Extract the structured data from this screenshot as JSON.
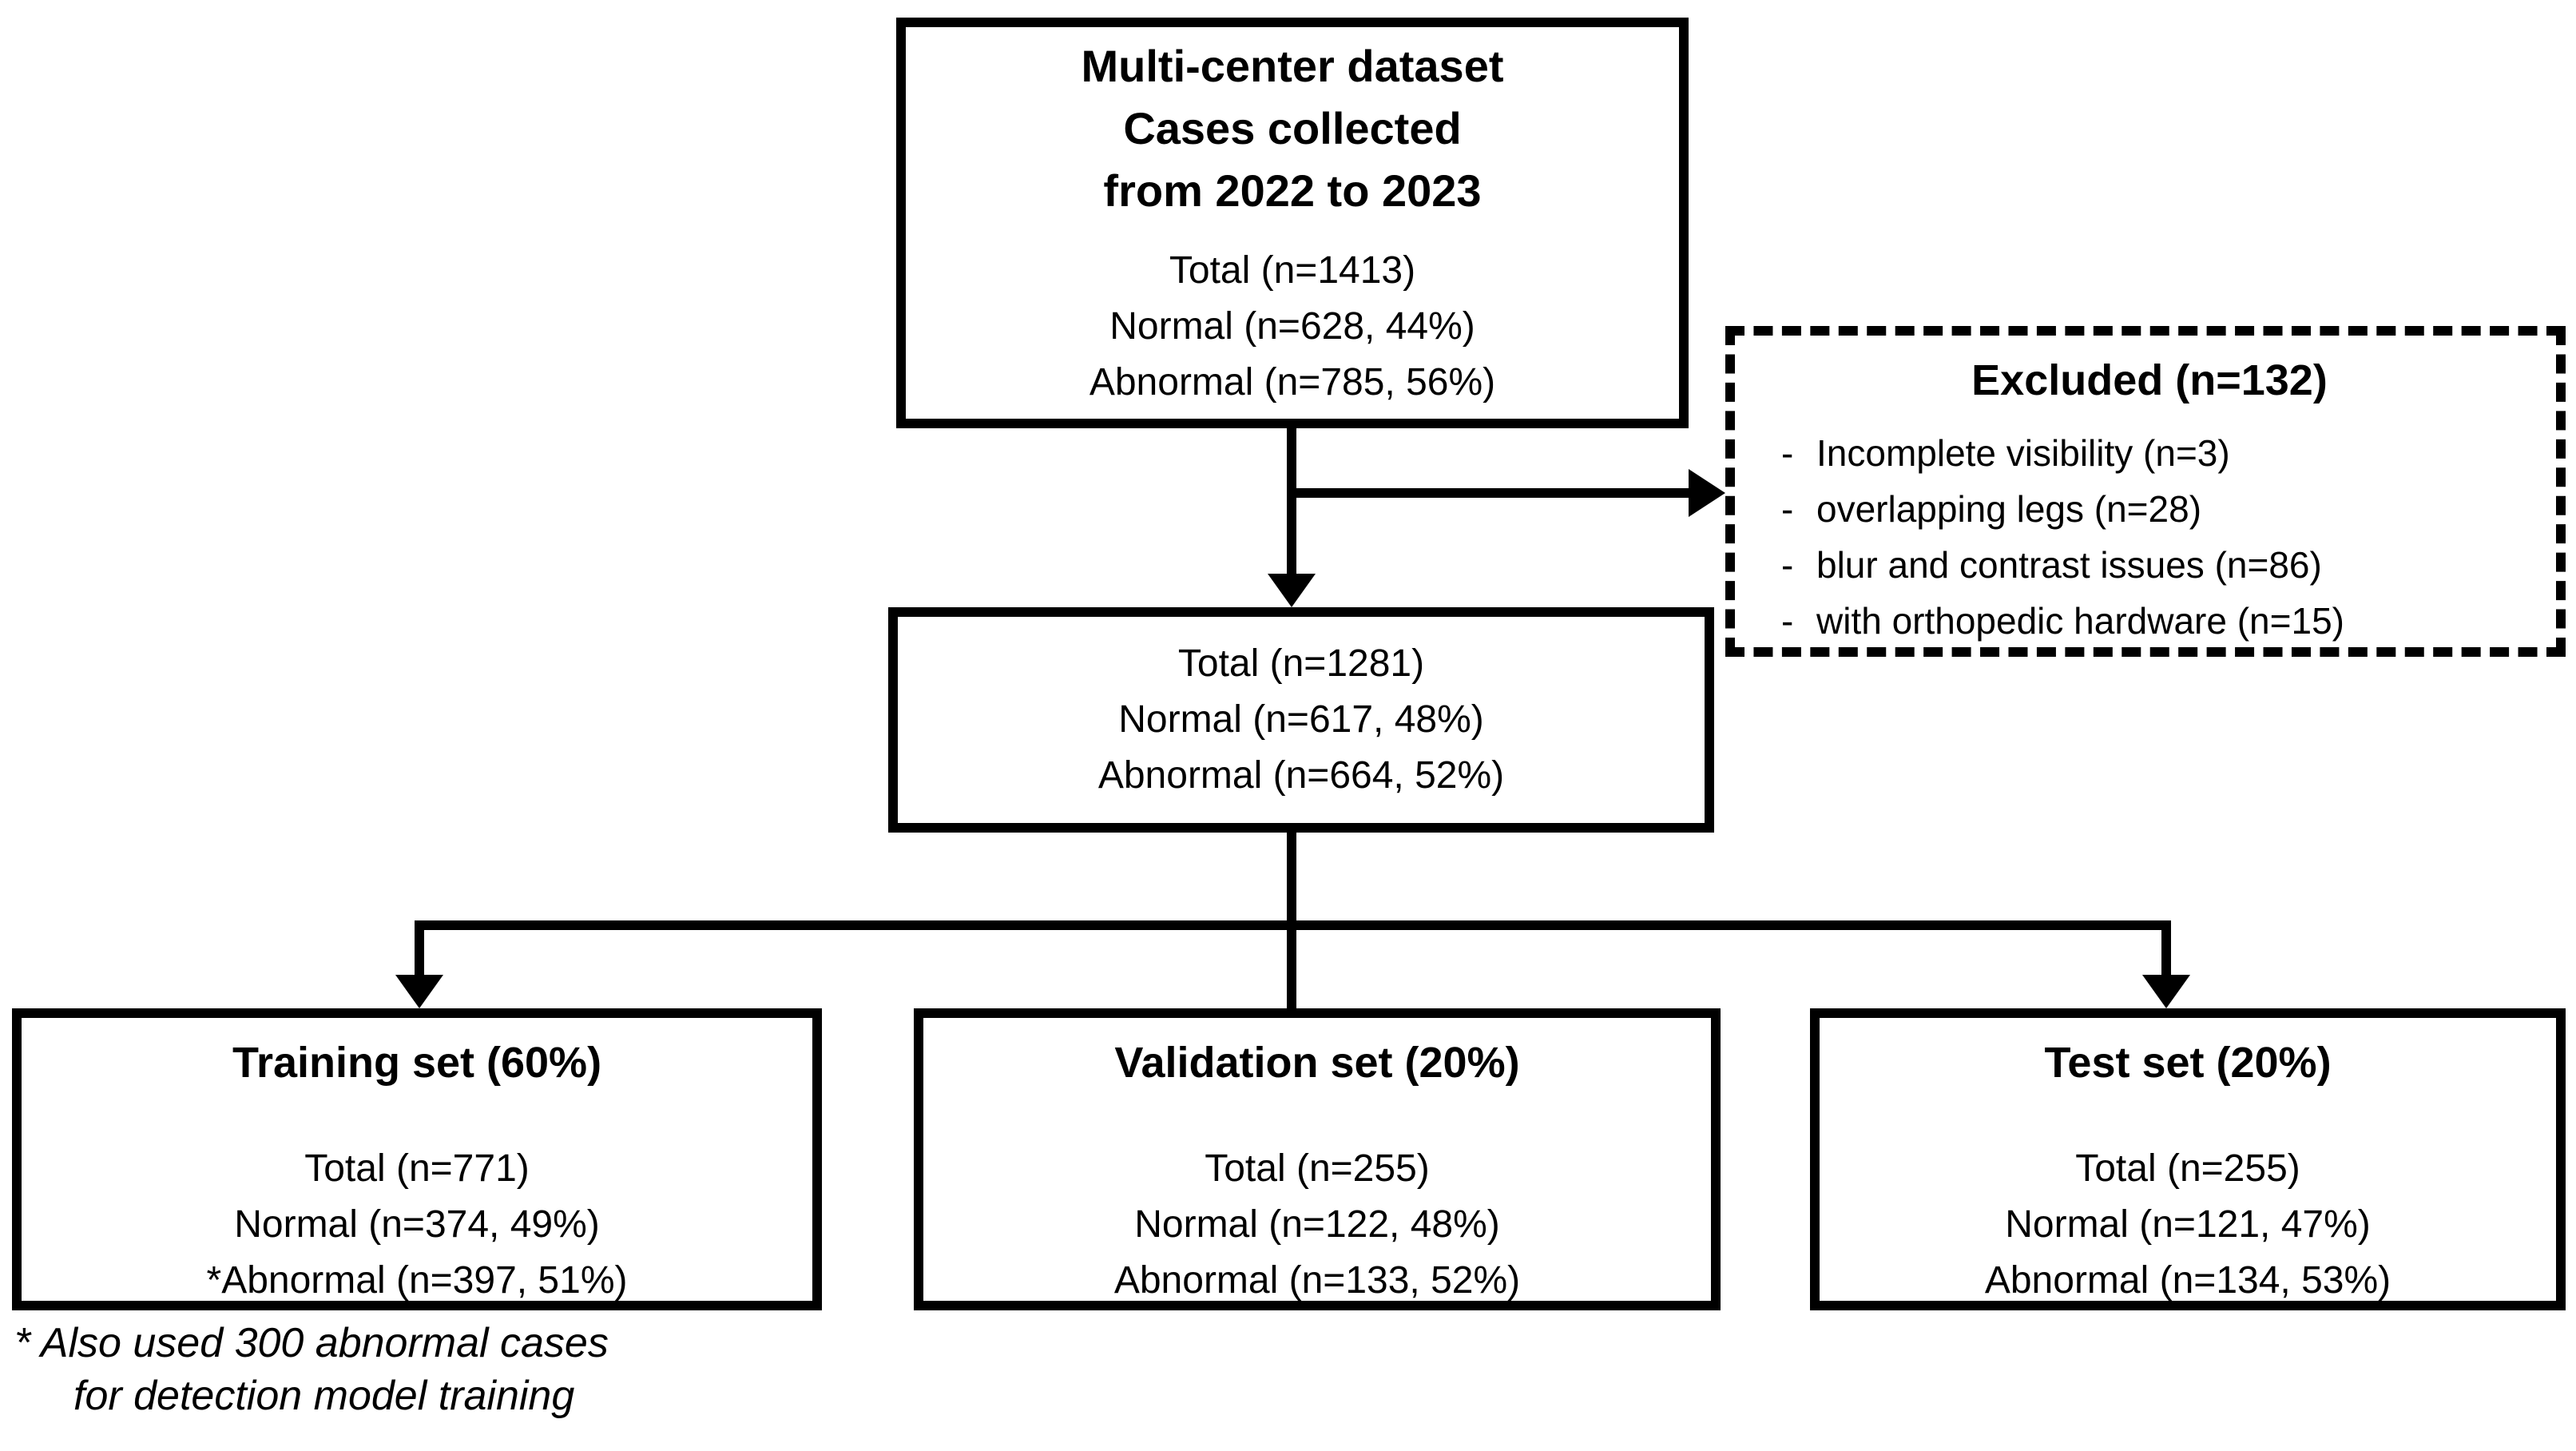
{
  "figure": {
    "background_color": "#ffffff",
    "line_color": "#000000"
  },
  "top_box": {
    "title_lines": [
      "Multi-center dataset",
      "Cases collected",
      "from 2022 to 2023"
    ],
    "stats": [
      "Total (n=1413)",
      "Normal (n=628, 44%)",
      "Abnormal (n=785, 56%)"
    ]
  },
  "excluded_box": {
    "title": "Excluded (n=132)",
    "bullet": "-",
    "items": [
      "Incomplete visibility (n=3)",
      "overlapping legs (n=28)",
      "blur and contrast issues (n=86)",
      "with orthopedic hardware (n=15)"
    ]
  },
  "eligible_box": {
    "stats": [
      "Total (n=1281)",
      "Normal (n=617, 48%)",
      "Abnormal (n=664, 52%)"
    ]
  },
  "training_box": {
    "title": "Training set (60%)",
    "stats": [
      "Total (n=771)",
      "Normal (n=374, 49%)",
      "*Abnormal (n=397, 51%)"
    ]
  },
  "validation_box": {
    "title": "Validation set (20%)",
    "stats": [
      "Total (n=255)",
      "Normal (n=122, 48%)",
      "Abnormal (n=133, 52%)"
    ]
  },
  "test_box": {
    "title": "Test set (20%)",
    "stats": [
      "Total (n=255)",
      "Normal (n=121, 47%)",
      "Abnormal (n=134, 53%)"
    ]
  },
  "footnote": {
    "line1": "* Also used 300 abnormal cases",
    "line2": "for detection model training"
  }
}
